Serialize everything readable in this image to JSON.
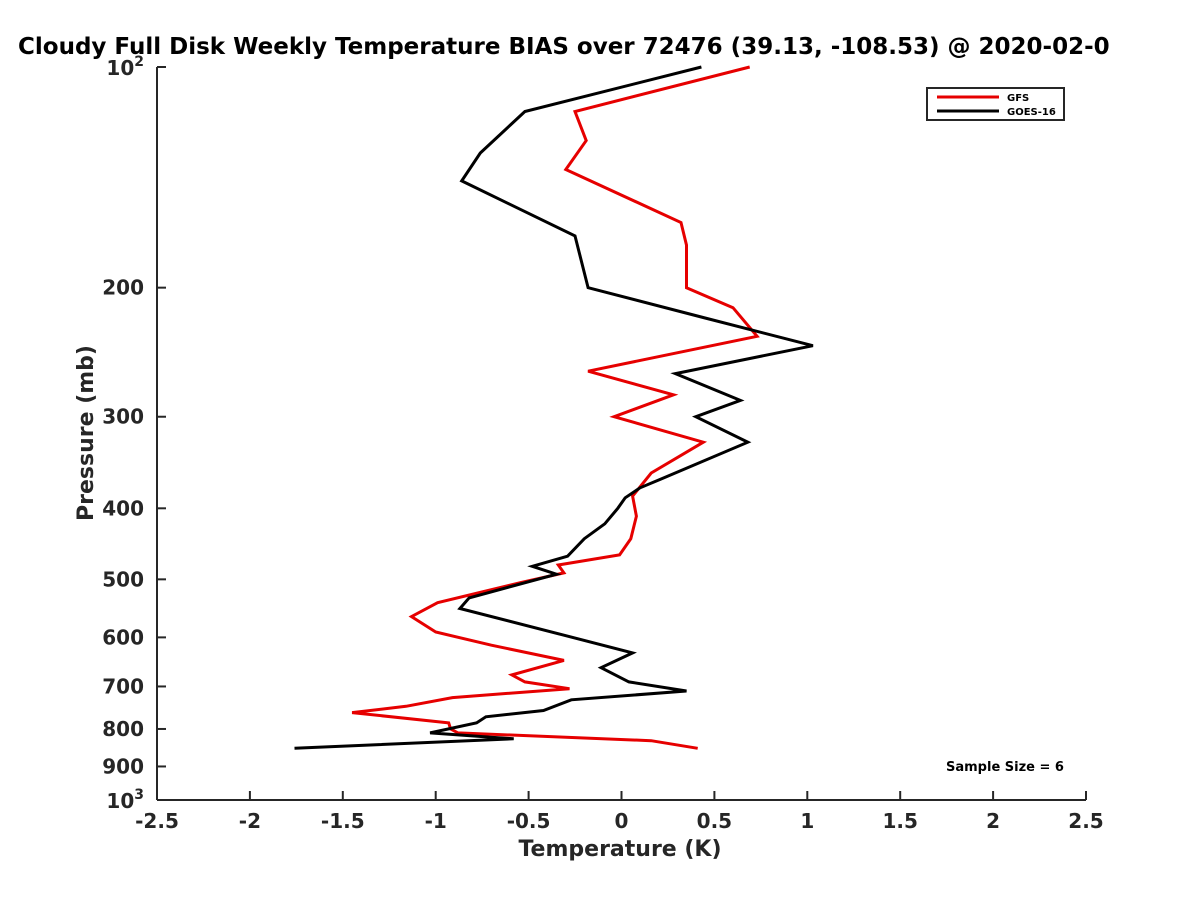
{
  "chart_data": {
    "type": "line",
    "title": "Cloudy Full Disk Weekly Temperature BIAS over 72476 (39.13, -108.53) @ 2020-02-0",
    "xlabel": "Temperature (K)",
    "ylabel": "Pressure (mb)",
    "xlim": [
      -2.5,
      2.5
    ],
    "ylim": [
      100,
      1000
    ],
    "y_scale": "log",
    "y_reversed": true,
    "grid": false,
    "legend_position": "top-right",
    "x_ticks": [
      -2.5,
      -2,
      -1.5,
      -1,
      -0.5,
      0,
      0.5,
      1,
      1.5,
      2,
      2.5
    ],
    "x_tick_labels": [
      "-2.5",
      "-2",
      "-1.5",
      "-1",
      "-0.5",
      "0",
      "0.5",
      "1",
      "1.5",
      "2",
      "2.5"
    ],
    "y_ticks": [
      200,
      300,
      400,
      500,
      600,
      700,
      800,
      900
    ],
    "y_tick_labels": [
      "200",
      "300",
      "400",
      "500",
      "600",
      "700",
      "800",
      "900"
    ],
    "y_top_label": {
      "base": "10",
      "exp": "2"
    },
    "y_bottom_label": {
      "base": "10",
      "exp": "3"
    },
    "annotation": "Sample Size = 6",
    "series": [
      {
        "name": "GFS",
        "color": "#e60000",
        "points": [
          [
            0.69,
            100
          ],
          [
            -0.25,
            115
          ],
          [
            -0.19,
            126
          ],
          [
            -0.3,
            138
          ],
          [
            0.32,
            163
          ],
          [
            0.35,
            175
          ],
          [
            0.35,
            200
          ],
          [
            0.6,
            213
          ],
          [
            0.73,
            233
          ],
          [
            -0.18,
            260
          ],
          [
            0.28,
            280
          ],
          [
            -0.04,
            300
          ],
          [
            0.44,
            325
          ],
          [
            0.16,
            358
          ],
          [
            0.06,
            385
          ],
          [
            0.08,
            410
          ],
          [
            0.05,
            440
          ],
          [
            -0.01,
            463
          ],
          [
            -0.34,
            478
          ],
          [
            -0.31,
            490
          ],
          [
            -0.54,
            505
          ],
          [
            -0.99,
            538
          ],
          [
            -1.13,
            562
          ],
          [
            -1.0,
            590
          ],
          [
            -0.7,
            615
          ],
          [
            -0.31,
            645
          ],
          [
            -0.59,
            675
          ],
          [
            -0.52,
            690
          ],
          [
            -0.28,
            705
          ],
          [
            -0.91,
            725
          ],
          [
            -1.16,
            745
          ],
          [
            -1.45,
            760
          ],
          [
            -0.93,
            785
          ],
          [
            -0.92,
            800
          ],
          [
            -0.88,
            810
          ],
          [
            0.16,
            830
          ],
          [
            0.41,
            850
          ]
        ]
      },
      {
        "name": "GOES-16",
        "color": "#000000",
        "points": [
          [
            0.43,
            100
          ],
          [
            -0.52,
            115
          ],
          [
            -0.76,
            131
          ],
          [
            -0.86,
            143
          ],
          [
            -0.25,
            170
          ],
          [
            -0.18,
            200
          ],
          [
            0.45,
            220
          ],
          [
            1.03,
            240
          ],
          [
            0.29,
            262
          ],
          [
            0.64,
            285
          ],
          [
            0.4,
            300
          ],
          [
            0.68,
            325
          ],
          [
            0.21,
            365
          ],
          [
            0.1,
            375
          ],
          [
            0.02,
            387
          ],
          [
            -0.02,
            400
          ],
          [
            -0.09,
            420
          ],
          [
            -0.2,
            440
          ],
          [
            -0.29,
            465
          ],
          [
            -0.48,
            480
          ],
          [
            -0.35,
            492
          ],
          [
            -0.82,
            530
          ],
          [
            -0.87,
            548
          ],
          [
            -0.32,
            595
          ],
          [
            0.06,
            630
          ],
          [
            -0.11,
            660
          ],
          [
            0.04,
            690
          ],
          [
            0.35,
            710
          ],
          [
            -0.27,
            730
          ],
          [
            -0.42,
            755
          ],
          [
            -0.73,
            770
          ],
          [
            -0.78,
            785
          ],
          [
            -1.03,
            810
          ],
          [
            -0.58,
            825
          ],
          [
            -1.76,
            850
          ]
        ]
      }
    ]
  }
}
